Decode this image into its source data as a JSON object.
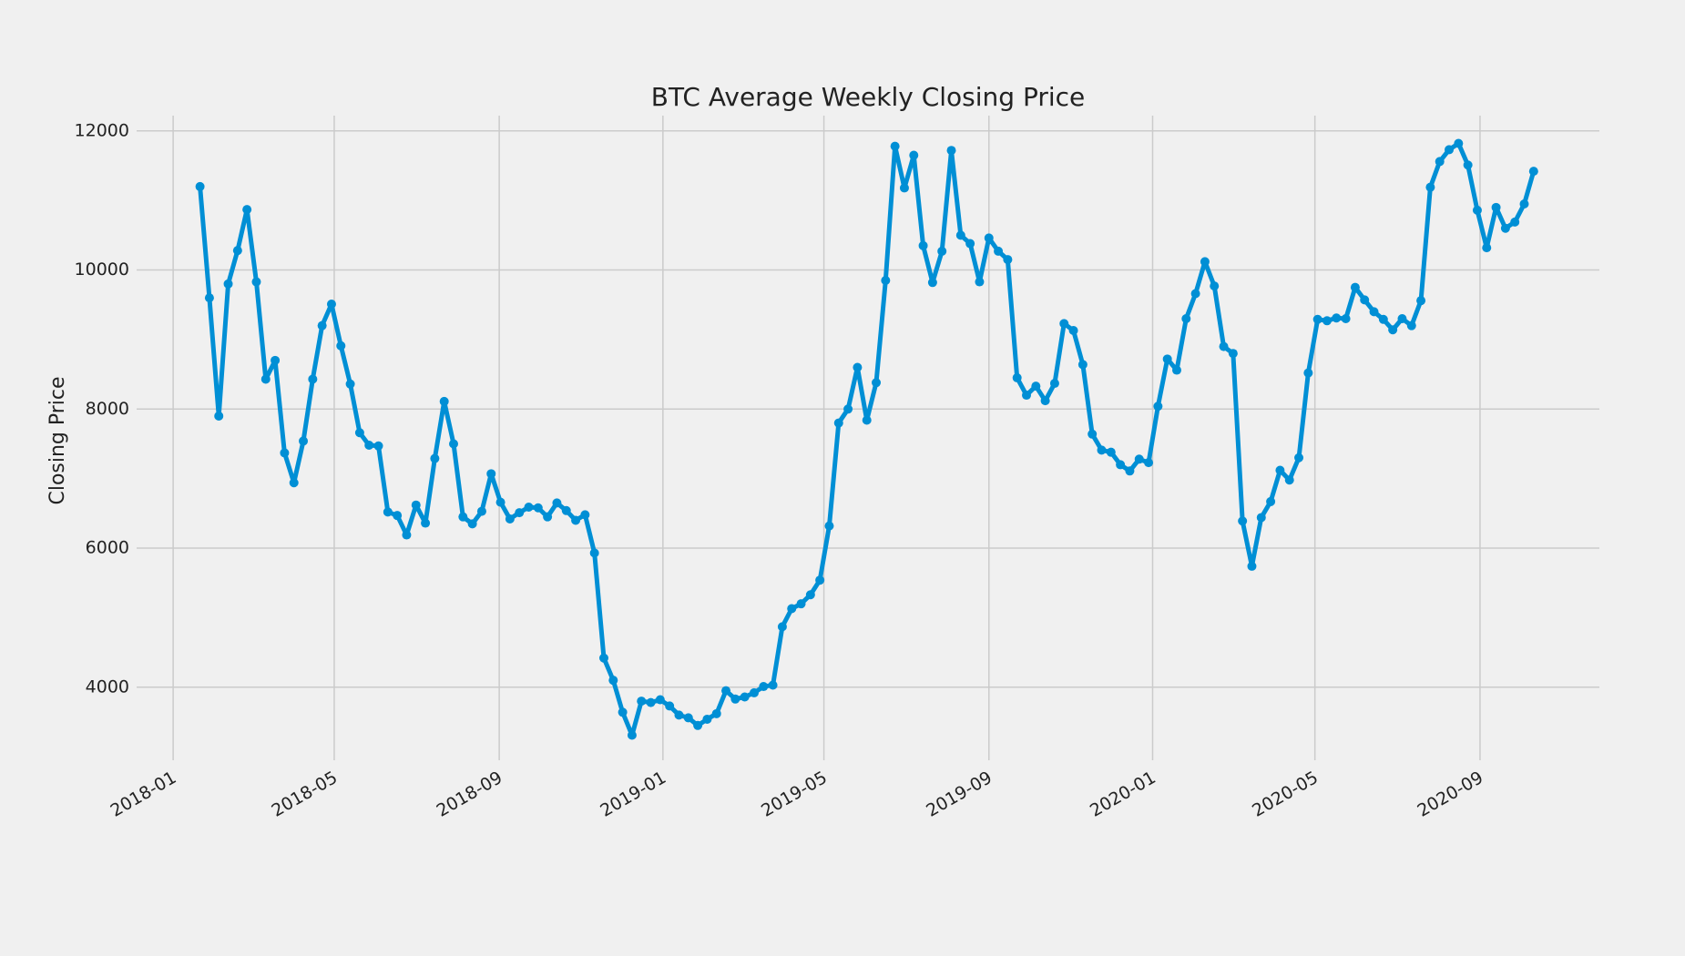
{
  "chart_data": {
    "type": "line",
    "title": "BTC Average Weekly Closing Price",
    "y_label": "Closing Price",
    "color": "#008fd5",
    "grid": true,
    "values": [
      11200,
      9600,
      7900,
      9800,
      10280,
      10870,
      9830,
      8430,
      8700,
      7370,
      6940,
      7540,
      8430,
      9200,
      9510,
      8910,
      8360,
      7660,
      7480,
      7470,
      6520,
      6470,
      6190,
      6620,
      6360,
      7290,
      8110,
      7500,
      6450,
      6350,
      6530,
      7070,
      6660,
      6420,
      6510,
      6590,
      6580,
      6450,
      6650,
      6540,
      6400,
      6480,
      5930,
      4420,
      4100,
      3640,
      3310,
      3800,
      3780,
      3820,
      3730,
      3600,
      3560,
      3450,
      3540,
      3620,
      3950,
      3830,
      3860,
      3920,
      4010,
      4030,
      4870,
      5130,
      5200,
      5330,
      5540,
      6320,
      7800,
      8000,
      8600,
      7840,
      8380,
      9850,
      11780,
      11180,
      11650,
      10350,
      9820,
      10270,
      11720,
      10500,
      10380,
      9830,
      10460,
      10270,
      10150,
      8450,
      8200,
      8330,
      8120,
      8370,
      9230,
      9130,
      8640,
      7640,
      7410,
      7380,
      7200,
      7110,
      7280,
      7230,
      8040,
      8720,
      8560,
      9300,
      9660,
      10120,
      9770,
      8900,
      8800,
      6390,
      5740,
      6440,
      6670,
      7120,
      6980,
      7300,
      8520,
      9290,
      9270,
      9310,
      9300,
      9750,
      9570,
      9400,
      9290,
      9140,
      9300,
      9200,
      9560,
      11190,
      11560,
      11730,
      11820,
      11510,
      10860,
      10320,
      10900,
      10600,
      10690,
      10950,
      11420
    ],
    "xlim": [
      -6.75,
      149
    ],
    "xticks": [
      {
        "value": -2.86,
        "label": "2018-01"
      },
      {
        "value": 14.29,
        "label": "2018-05"
      },
      {
        "value": 31.86,
        "label": "2018-09"
      },
      {
        "value": 49.29,
        "label": "2019-01"
      },
      {
        "value": 66.43,
        "label": "2019-05"
      },
      {
        "value": 84.0,
        "label": "2019-09"
      },
      {
        "value": 101.43,
        "label": "2020-01"
      },
      {
        "value": 118.71,
        "label": "2020-05"
      },
      {
        "value": 136.29,
        "label": "2020-09"
      }
    ],
    "ylim": [
      2950,
      12220
    ],
    "yticks": [
      4000,
      6000,
      8000,
      10000,
      12000
    ]
  }
}
